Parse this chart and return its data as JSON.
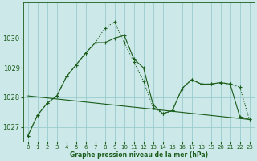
{
  "background_color": "#cce8e8",
  "grid_color": "#99cccc",
  "line_color": "#1a5c1a",
  "xlabel": "Graphe pression niveau de la mer (hPa)",
  "xlim": [
    -0.5,
    23.5
  ],
  "ylim": [
    1026.5,
    1031.2
  ],
  "yticks": [
    1027,
    1028,
    1029,
    1030
  ],
  "xticks": [
    0,
    1,
    2,
    3,
    4,
    5,
    6,
    7,
    8,
    9,
    10,
    11,
    12,
    13,
    14,
    15,
    16,
    17,
    18,
    19,
    20,
    21,
    22,
    23
  ],
  "series_dot_x": [
    0,
    1,
    2,
    3,
    4,
    5,
    6,
    7,
    8,
    9,
    10,
    11,
    12,
    13,
    14,
    15,
    16,
    17,
    18,
    19,
    20,
    21,
    22,
    23
  ],
  "series_dot_y": [
    1026.7,
    1027.4,
    1027.8,
    1028.05,
    1028.7,
    1029.1,
    1029.5,
    1029.85,
    1030.35,
    1030.55,
    1029.85,
    1029.2,
    1028.55,
    1027.65,
    1027.45,
    1027.55,
    1028.3,
    1028.6,
    1028.45,
    1028.45,
    1028.5,
    1028.45,
    1028.35,
    1027.25
  ],
  "series_solid_x": [
    0,
    1,
    2,
    3,
    4,
    5,
    6,
    7,
    8,
    9,
    10,
    11,
    12,
    13,
    14,
    15,
    16,
    17,
    18,
    19,
    20,
    21,
    22,
    23
  ],
  "series_solid_y": [
    1026.7,
    1027.4,
    1027.8,
    1028.05,
    1028.7,
    1029.1,
    1029.5,
    1029.85,
    1029.85,
    1030.0,
    1030.1,
    1029.3,
    1029.0,
    1027.75,
    1027.45,
    1027.55,
    1028.3,
    1028.6,
    1028.45,
    1028.45,
    1028.5,
    1028.45,
    1027.35,
    1027.25
  ],
  "series_trend_x": [
    0,
    23
  ],
  "series_trend_y": [
    1028.05,
    1027.25
  ],
  "marker": "+"
}
